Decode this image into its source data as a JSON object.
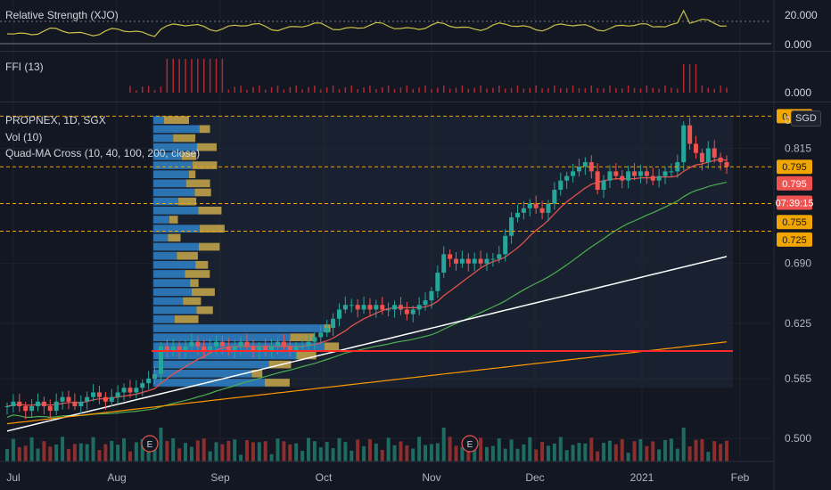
{
  "panes": {
    "rs": {
      "label": "Relative Strength (XJO)",
      "ticks": [
        "20.000",
        "0.000"
      ]
    },
    "ffi": {
      "label": "FFI (13)",
      "ticks": [
        "0.000"
      ]
    },
    "main": {
      "symbol": "PROPNEX, 1D, SGX",
      "currency": "SGD",
      "indicators": [
        "Vol (10)",
        "Quad-MA Cross (10, 40, 100, 200, close)"
      ],
      "zero": "0"
    }
  },
  "chart_data": {
    "type": "candlestick",
    "x_ticks": [
      "Jul",
      "Aug",
      "Sep",
      "Oct",
      "Nov",
      "Dec",
      "2021",
      "Feb"
    ],
    "y_ticks": [
      0.815,
      0.69,
      0.625,
      0.565,
      0.5
    ],
    "y_range": [
      0.475,
      0.86
    ],
    "price_tags": [
      {
        "value": "0.850",
        "color": "#f0a500",
        "text_color": "#131722"
      },
      {
        "value": "0.795",
        "color": "#f0a500",
        "text_color": "#131722"
      },
      {
        "value": "0.795",
        "color": "#ef5350",
        "text_color": "#ffffff"
      },
      {
        "value": "07:39:15",
        "color": "#ef5350",
        "text_color": "#ffffff"
      },
      {
        "value": "0.755",
        "color": "#f0a500",
        "text_color": "#131722"
      },
      {
        "value": "0.725",
        "color": "#f0a500",
        "text_color": "#131722"
      }
    ],
    "horizontal_levels": [
      0.85,
      0.795,
      0.755,
      0.725
    ],
    "poc_level": 0.595,
    "events": [
      "E",
      "E"
    ],
    "series_colors": {
      "ma10": "#ef5350",
      "ma40": "#4caf50",
      "ma100": "#ffffff",
      "ma200": "#ff9800",
      "up": "#26a69a",
      "down": "#ef5350",
      "rs_line": "#c8c04a",
      "ffi": "#b22833",
      "vp_up": "#2f82c8",
      "vp_down": "#c8a84a"
    },
    "close_series": [
      0.535,
      0.54,
      0.535,
      0.53,
      0.535,
      0.54,
      0.535,
      0.53,
      0.54,
      0.545,
      0.54,
      0.535,
      0.54,
      0.545,
      0.55,
      0.545,
      0.54,
      0.545,
      0.55,
      0.555,
      0.55,
      0.555,
      0.56,
      0.565,
      0.57,
      0.6,
      0.595,
      0.6,
      0.595,
      0.6,
      0.605,
      0.6,
      0.595,
      0.6,
      0.605,
      0.6,
      0.595,
      0.6,
      0.605,
      0.6,
      0.595,
      0.6,
      0.595,
      0.6,
      0.605,
      0.6,
      0.595,
      0.6,
      0.6,
      0.605,
      0.61,
      0.615,
      0.62,
      0.63,
      0.64,
      0.645,
      0.645,
      0.64,
      0.645,
      0.64,
      0.645,
      0.64,
      0.64,
      0.645,
      0.64,
      0.635,
      0.64,
      0.645,
      0.65,
      0.66,
      0.68,
      0.7,
      0.695,
      0.69,
      0.695,
      0.69,
      0.695,
      0.69,
      0.695,
      0.695,
      0.7,
      0.72,
      0.74,
      0.745,
      0.75,
      0.755,
      0.75,
      0.745,
      0.755,
      0.77,
      0.78,
      0.785,
      0.79,
      0.795,
      0.8,
      0.79,
      0.77,
      0.78,
      0.79,
      0.785,
      0.78,
      0.79,
      0.785,
      0.79,
      0.785,
      0.78,
      0.785,
      0.79,
      0.79,
      0.8,
      0.84,
      0.82,
      0.81,
      0.8,
      0.815,
      0.805,
      0.8,
      0.795
    ],
    "ma10": [
      0.535,
      0.536,
      0.537,
      0.536,
      0.536,
      0.537,
      0.537,
      0.536,
      0.537,
      0.538,
      0.539,
      0.539,
      0.539,
      0.54,
      0.542,
      0.543,
      0.543,
      0.544,
      0.545,
      0.546,
      0.547,
      0.548,
      0.55,
      0.552,
      0.554,
      0.56,
      0.565,
      0.57,
      0.574,
      0.578,
      0.582,
      0.586,
      0.589,
      0.593,
      0.596,
      0.598,
      0.599,
      0.6,
      0.6,
      0.6,
      0.6,
      0.6,
      0.6,
      0.6,
      0.6,
      0.6,
      0.6,
      0.6,
      0.6,
      0.601,
      0.602,
      0.604,
      0.606,
      0.609,
      0.613,
      0.617,
      0.622,
      0.626,
      0.63,
      0.633,
      0.636,
      0.639,
      0.641,
      0.642,
      0.642,
      0.642,
      0.642,
      0.642,
      0.643,
      0.645,
      0.649,
      0.655,
      0.66,
      0.665,
      0.67,
      0.675,
      0.68,
      0.685,
      0.689,
      0.692,
      0.694,
      0.697,
      0.702,
      0.707,
      0.713,
      0.72,
      0.726,
      0.731,
      0.737,
      0.744,
      0.751,
      0.757,
      0.762,
      0.767,
      0.772,
      0.776,
      0.778,
      0.78,
      0.781,
      0.782,
      0.782,
      0.782,
      0.782,
      0.783,
      0.783,
      0.783,
      0.784,
      0.784,
      0.784,
      0.785,
      0.79,
      0.794,
      0.797,
      0.798,
      0.8,
      0.802,
      0.803,
      0.802
    ]
  }
}
